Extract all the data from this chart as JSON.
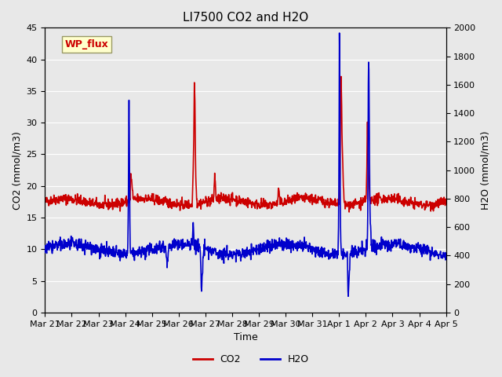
{
  "title": "LI7500 CO2 and H2O",
  "xlabel": "Time",
  "ylabel_left": "CO2 (mmol/m3)",
  "ylabel_right": "H2O (mmol/m3)",
  "ylim_left": [
    0,
    45
  ],
  "ylim_right": [
    0,
    2000
  ],
  "yticks_left": [
    0,
    5,
    10,
    15,
    20,
    25,
    30,
    35,
    40,
    45
  ],
  "yticks_right": [
    0,
    200,
    400,
    600,
    800,
    1000,
    1200,
    1400,
    1600,
    1800,
    2000
  ],
  "x_labels": [
    "Mar 21",
    "Mar 22",
    "Mar 23",
    "Mar 24",
    "Mar 25",
    "Mar 26",
    "Mar 27",
    "Mar 28",
    "Mar 29",
    "Mar 30",
    "Mar 31",
    "Apr 1",
    "Apr 2",
    "Apr 3",
    "Apr 4",
    "Apr 5"
  ],
  "co2_color": "#cc0000",
  "h2o_color": "#0000cc",
  "background_color": "#e8e8e8",
  "plot_bg_color": "#e8e8e8",
  "grid_color": "#ffffff",
  "annotation_text": "WP_flux",
  "annotation_box_color": "#ffffcc",
  "annotation_text_color": "#cc0000",
  "title_fontsize": 11,
  "axis_fontsize": 9,
  "tick_fontsize": 8,
  "legend_fontsize": 9,
  "linewidth": 1.2,
  "n_points": 1400
}
